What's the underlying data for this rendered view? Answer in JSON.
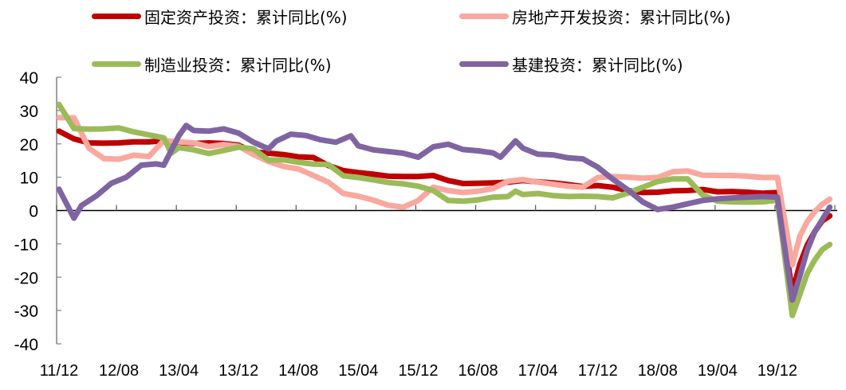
{
  "chart_data": {
    "type": "line",
    "title": "",
    "xlabel": "",
    "ylabel": "",
    "ylim": [
      -40,
      40
    ],
    "yticks": [
      "40",
      "30",
      "20",
      "10",
      "0",
      "-10",
      "-20",
      "-30",
      "-40"
    ],
    "x_tick_labels": [
      "11/12",
      "12/08",
      "13/04",
      "13/12",
      "14/08",
      "15/04",
      "15/12",
      "16/08",
      "17/04",
      "17/12",
      "18/08",
      "19/04",
      "19/12"
    ],
    "grid": false,
    "legend_position": "top",
    "x_month_index_note": "month offsets from 2011-12",
    "series": [
      {
        "name": "固定资产投资：累计同比(%)",
        "color": "#C00000",
        "points": [
          [
            0,
            23.8
          ],
          [
            2,
            21.5
          ],
          [
            4,
            20.3
          ],
          [
            6,
            20.2
          ],
          [
            8,
            20.3
          ],
          [
            10,
            20.6
          ],
          [
            12,
            20.6
          ],
          [
            14,
            20.9
          ],
          [
            16,
            20.4
          ],
          [
            18,
            20.1
          ],
          [
            20,
            20.3
          ],
          [
            22,
            20.1
          ],
          [
            24,
            19.6
          ],
          [
            26,
            17.6
          ],
          [
            28,
            17.2
          ],
          [
            30,
            16.8
          ],
          [
            32,
            16.1
          ],
          [
            34,
            15.9
          ],
          [
            36,
            13.5
          ],
          [
            38,
            12.0
          ],
          [
            40,
            11.4
          ],
          [
            42,
            10.9
          ],
          [
            44,
            10.3
          ],
          [
            46,
            10.2
          ],
          [
            48,
            10.2
          ],
          [
            50,
            10.5
          ],
          [
            52,
            9.0
          ],
          [
            54,
            8.1
          ],
          [
            56,
            8.2
          ],
          [
            58,
            8.3
          ],
          [
            60,
            8.5
          ],
          [
            62,
            9.0
          ],
          [
            64,
            8.6
          ],
          [
            66,
            8.3
          ],
          [
            68,
            7.8
          ],
          [
            70,
            7.2
          ],
          [
            72,
            7.5
          ],
          [
            74,
            7.0
          ],
          [
            76,
            6.0
          ],
          [
            78,
            5.4
          ],
          [
            80,
            5.5
          ],
          [
            82,
            5.9
          ],
          [
            84,
            6.0
          ],
          [
            86,
            6.3
          ],
          [
            88,
            5.6
          ],
          [
            90,
            5.7
          ],
          [
            92,
            5.5
          ],
          [
            94,
            5.2
          ],
          [
            96,
            5.4
          ],
          [
            98,
            -24.5
          ],
          [
            99,
            -16.1
          ],
          [
            100,
            -10.3
          ],
          [
            101,
            -6.3
          ],
          [
            102,
            -3.1
          ],
          [
            103,
            -1.6
          ]
        ]
      },
      {
        "name": "房地产开发投资：累计同比(%)",
        "color": "#F9A89F",
        "points": [
          [
            0,
            27.9
          ],
          [
            2,
            27.8
          ],
          [
            4,
            18.7
          ],
          [
            6,
            15.6
          ],
          [
            8,
            15.4
          ],
          [
            10,
            16.6
          ],
          [
            12,
            16.2
          ],
          [
            14,
            21.0
          ],
          [
            16,
            20.6
          ],
          [
            18,
            20.3
          ],
          [
            20,
            19.2
          ],
          [
            22,
            19.8
          ],
          [
            24,
            19.3
          ],
          [
            26,
            16.8
          ],
          [
            28,
            14.7
          ],
          [
            30,
            13.2
          ],
          [
            32,
            12.5
          ],
          [
            34,
            10.5
          ],
          [
            36,
            8.5
          ],
          [
            38,
            5.1
          ],
          [
            40,
            4.3
          ],
          [
            42,
            3.1
          ],
          [
            44,
            1.6
          ],
          [
            46,
            1.0
          ],
          [
            48,
            3.0
          ],
          [
            50,
            7.0
          ],
          [
            52,
            6.0
          ],
          [
            54,
            5.4
          ],
          [
            56,
            5.8
          ],
          [
            58,
            6.6
          ],
          [
            60,
            8.8
          ],
          [
            62,
            9.3
          ],
          [
            64,
            8.5
          ],
          [
            66,
            7.9
          ],
          [
            68,
            7.3
          ],
          [
            70,
            7.0
          ],
          [
            72,
            9.9
          ],
          [
            74,
            10.2
          ],
          [
            76,
            10.0
          ],
          [
            78,
            9.7
          ],
          [
            80,
            9.9
          ],
          [
            82,
            11.6
          ],
          [
            84,
            11.9
          ],
          [
            86,
            10.6
          ],
          [
            88,
            10.5
          ],
          [
            90,
            10.5
          ],
          [
            92,
            10.3
          ],
          [
            94,
            9.9
          ],
          [
            96,
            9.9
          ],
          [
            98,
            -16.3
          ],
          [
            99,
            -7.7
          ],
          [
            100,
            -3.3
          ],
          [
            101,
            -0.3
          ],
          [
            102,
            1.9
          ],
          [
            103,
            3.4
          ]
        ]
      },
      {
        "name": "制造业投资：累计同比(%)",
        "color": "#9BBB59",
        "points": [
          [
            0,
            31.8
          ],
          [
            2,
            24.6
          ],
          [
            4,
            24.4
          ],
          [
            6,
            24.5
          ],
          [
            8,
            24.8
          ],
          [
            10,
            23.6
          ],
          [
            12,
            22.7
          ],
          [
            14,
            21.8
          ],
          [
            15,
            17.2
          ],
          [
            16,
            18.9
          ],
          [
            18,
            18.2
          ],
          [
            20,
            17.1
          ],
          [
            22,
            18.0
          ],
          [
            24,
            19.0
          ],
          [
            26,
            18.5
          ],
          [
            28,
            15.1
          ],
          [
            30,
            15.2
          ],
          [
            32,
            14.5
          ],
          [
            34,
            13.9
          ],
          [
            36,
            13.8
          ],
          [
            38,
            10.4
          ],
          [
            40,
            9.9
          ],
          [
            42,
            9.2
          ],
          [
            44,
            8.4
          ],
          [
            46,
            8.0
          ],
          [
            48,
            7.3
          ],
          [
            50,
            6.0
          ],
          [
            52,
            3.0
          ],
          [
            54,
            2.8
          ],
          [
            56,
            3.2
          ],
          [
            58,
            4.0
          ],
          [
            60,
            4.2
          ],
          [
            61,
            5.8
          ],
          [
            62,
            4.8
          ],
          [
            64,
            5.1
          ],
          [
            66,
            4.5
          ],
          [
            68,
            4.2
          ],
          [
            70,
            4.3
          ],
          [
            72,
            4.2
          ],
          [
            74,
            3.8
          ],
          [
            76,
            5.2
          ],
          [
            78,
            7.0
          ],
          [
            80,
            8.7
          ],
          [
            82,
            9.5
          ],
          [
            84,
            9.5
          ],
          [
            86,
            4.7
          ],
          [
            88,
            2.8
          ],
          [
            90,
            2.6
          ],
          [
            92,
            2.5
          ],
          [
            94,
            2.6
          ],
          [
            96,
            3.1
          ],
          [
            98,
            -31.5
          ],
          [
            99,
            -25.2
          ],
          [
            100,
            -18.8
          ],
          [
            101,
            -14.8
          ],
          [
            102,
            -11.7
          ],
          [
            103,
            -10.2
          ]
        ]
      },
      {
        "name": "基建投资：累计同比(%)",
        "color": "#8064A2",
        "points": [
          [
            0,
            6.4
          ],
          [
            2,
            -2.3
          ],
          [
            3,
            1.5
          ],
          [
            5,
            4.4
          ],
          [
            7,
            8.2
          ],
          [
            9,
            10.0
          ],
          [
            11,
            13.6
          ],
          [
            13,
            14.0
          ],
          [
            14,
            13.6
          ],
          [
            16,
            22.4
          ],
          [
            17,
            25.5
          ],
          [
            18,
            24.0
          ],
          [
            20,
            23.8
          ],
          [
            22,
            24.5
          ],
          [
            24,
            23.2
          ],
          [
            26,
            20.5
          ],
          [
            28,
            18.5
          ],
          [
            29,
            20.8
          ],
          [
            31,
            22.9
          ],
          [
            33,
            22.5
          ],
          [
            35,
            21.2
          ],
          [
            37,
            20.5
          ],
          [
            39,
            22.4
          ],
          [
            40,
            19.4
          ],
          [
            42,
            18.2
          ],
          [
            44,
            17.7
          ],
          [
            46,
            17.2
          ],
          [
            48,
            16.0
          ],
          [
            50,
            19.1
          ],
          [
            52,
            19.9
          ],
          [
            54,
            18.3
          ],
          [
            56,
            17.9
          ],
          [
            58,
            17.3
          ],
          [
            59,
            16.0
          ],
          [
            61,
            20.9
          ],
          [
            62,
            18.7
          ],
          [
            64,
            16.9
          ],
          [
            66,
            16.7
          ],
          [
            68,
            15.8
          ],
          [
            70,
            15.5
          ],
          [
            72,
            13.0
          ],
          [
            74,
            9.4
          ],
          [
            76,
            6.2
          ],
          [
            78,
            2.6
          ],
          [
            80,
            0.3
          ],
          [
            82,
            1.0
          ],
          [
            84,
            2.0
          ],
          [
            86,
            3.0
          ],
          [
            88,
            3.5
          ],
          [
            90,
            3.8
          ],
          [
            92,
            4.0
          ],
          [
            94,
            4.2
          ],
          [
            96,
            4.0
          ],
          [
            98,
            -26.9
          ],
          [
            99,
            -19.7
          ],
          [
            100,
            -11.8
          ],
          [
            101,
            -6.3
          ],
          [
            102,
            -2.7
          ],
          [
            103,
            1.0
          ]
        ]
      }
    ]
  },
  "legend": [
    {
      "label": "固定资产投资：累计同比(%)",
      "color": "#C00000"
    },
    {
      "label": "房地产开发投资：累计同比(%)",
      "color": "#F9A89F"
    },
    {
      "label": "制造业投资：累计同比(%)",
      "color": "#9BBB59"
    },
    {
      "label": "基建投资：累计同比(%)",
      "color": "#8064A2"
    }
  ]
}
